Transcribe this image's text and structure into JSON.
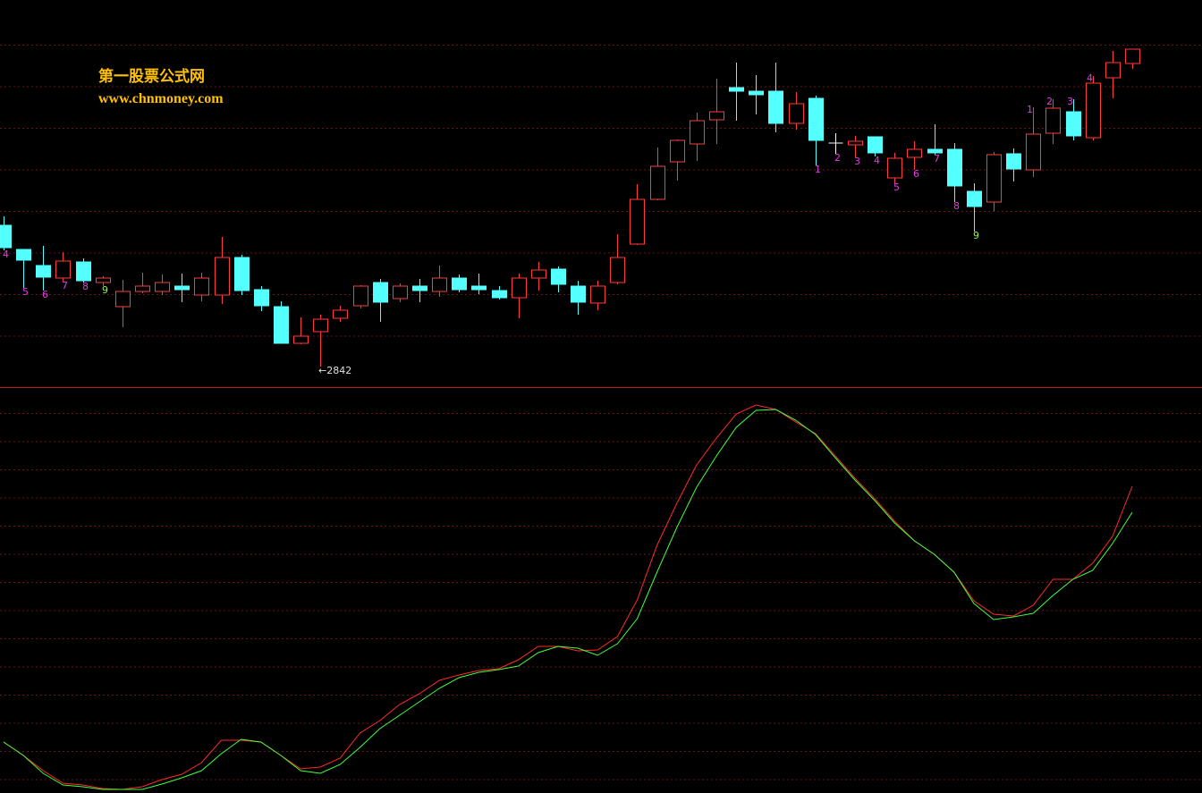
{
  "chart_data": [
    {
      "type": "candlestick",
      "title": "第一股票公式网",
      "subtitle": "www.chnmoney.com",
      "annotation": "←2842",
      "open": [
        3000,
        2973,
        2955,
        2941,
        2959,
        2936,
        2909,
        2926,
        2926,
        2932,
        2922,
        2922,
        2964,
        2928,
        2909,
        2868,
        2881,
        2896,
        2910,
        2936,
        2918,
        2932,
        2926,
        2941,
        2932,
        2927,
        2919,
        2941,
        2951,
        2932,
        2913,
        2936,
        2979,
        3029,
        3071,
        3091,
        3118,
        3154,
        3150,
        3150,
        3114,
        3142,
        3092,
        3090,
        3099,
        3053,
        3076,
        3085,
        3085,
        3038,
        3026,
        3080,
        3062,
        3103,
        3127,
        3098,
        3165,
        3181
      ],
      "high": [
        3010,
        2973,
        2977,
        2970,
        2963,
        2943,
        2939,
        2947,
        2945,
        2946,
        2947,
        2987,
        2967,
        2932,
        2915,
        2897,
        2900,
        2910,
        2933,
        2940,
        2935,
        2940,
        2955,
        2945,
        2946,
        2932,
        2946,
        2959,
        2954,
        2938,
        2938,
        2990,
        3046,
        3087,
        3096,
        3126,
        3164,
        3182,
        3168,
        3182,
        3149,
        3145,
        3103,
        3100,
        3099,
        3081,
        3094,
        3113,
        3092,
        3047,
        3082,
        3086,
        3132,
        3141,
        3141,
        3167,
        3195,
        3197
      ],
      "low": [
        2972,
        2930,
        2927,
        2937,
        2936,
        2932,
        2886,
        2924,
        2922,
        2914,
        2915,
        2912,
        2922,
        2904,
        2868,
        2867,
        2842,
        2892,
        2907,
        2892,
        2914,
        2914,
        2920,
        2925,
        2923,
        2917,
        2896,
        2927,
        2925,
        2900,
        2905,
        2934,
        2978,
        3028,
        3050,
        3072,
        3091,
        3117,
        3124,
        3104,
        3107,
        3067,
        3080,
        3076,
        3077,
        3047,
        3062,
        3079,
        3026,
        2993,
        3016,
        3049,
        3054,
        3091,
        3095,
        3095,
        3142,
        3175
      ],
      "close": [
        2975,
        2961,
        2942,
        2960,
        2938,
        2941,
        2926,
        2932,
        2936,
        2928,
        2941,
        2964,
        2927,
        2910,
        2868,
        2876,
        2895,
        2905,
        2932,
        2914,
        2932,
        2927,
        2941,
        2928,
        2928,
        2919,
        2941,
        2950,
        2934,
        2914,
        2932,
        2964,
        3029,
        3066,
        3095,
        3117,
        3127,
        3150,
        3146,
        3114,
        3136,
        3095,
        3092,
        3094,
        3081,
        3075,
        3085,
        3081,
        3044,
        3021,
        3079,
        3063,
        3102,
        3131,
        3100,
        3159,
        3182,
        3197
      ],
      "up_color": "#ff3c3c",
      "down_color": "#54ffff",
      "doji_color": "#ffffff",
      "ylim": [
        2817,
        3202
      ],
      "count_labels": [
        "4",
        "5",
        "6",
        "7",
        "8",
        "9",
        null,
        null,
        null,
        null,
        null,
        null,
        null,
        null,
        null,
        null,
        null,
        null,
        null,
        null,
        null,
        null,
        null,
        null,
        null,
        null,
        null,
        null,
        null,
        null,
        null,
        null,
        null,
        null,
        null,
        null,
        null,
        null,
        null,
        null,
        null,
        "1",
        "2",
        "3",
        "4",
        "5",
        "6",
        "7",
        "8",
        "9",
        null,
        null,
        "1",
        "2",
        "3",
        "4",
        null,
        null
      ],
      "count_colors": [
        "#e03ce0",
        "#e03ce0",
        "#e03ce0",
        "#e03ce0",
        "#e03ce0",
        "#80ff40",
        null,
        null,
        null,
        null,
        null,
        null,
        null,
        null,
        null,
        null,
        null,
        null,
        null,
        null,
        null,
        null,
        null,
        null,
        null,
        null,
        null,
        null,
        null,
        null,
        null,
        null,
        null,
        null,
        null,
        null,
        null,
        null,
        null,
        null,
        null,
        "#e03ce0",
        "#e03ce0",
        "#e03ce0",
        "#e03ce0",
        "#e03ce0",
        "#e03ce0",
        "#e03ce0",
        "#e03ce0",
        "#80ff40",
        null,
        null,
        "#e03ce0",
        "#e03ce0",
        "#e03ce0",
        "#e03ce0",
        null,
        null
      ]
    },
    {
      "type": "line",
      "ylim": [
        0,
        445
      ],
      "series": [
        {
          "color": "#ff2a2a",
          "values": [
            55,
            40,
            23,
            9,
            7,
            3,
            2,
            5,
            13,
            19,
            32,
            57,
            57,
            55,
            40,
            25,
            27,
            37,
            65,
            79,
            97,
            109,
            124,
            130,
            135,
            137,
            147,
            162,
            162,
            157,
            158,
            173,
            214,
            275,
            322,
            365,
            395,
            422,
            432,
            427,
            413,
            400,
            375,
            350,
            327,
            302,
            280,
            265,
            245,
            213,
            198,
            196,
            208,
            237,
            237,
            255,
            285,
            341
          ]
        },
        {
          "color": "#40ff40",
          "values": [
            55,
            40,
            20,
            7,
            5,
            2,
            2,
            2,
            8,
            15,
            23,
            42,
            58,
            55,
            40,
            23,
            20,
            30,
            49,
            70,
            85,
            100,
            115,
            127,
            133,
            136,
            140,
            155,
            162,
            160,
            152,
            165,
            193,
            245,
            295,
            340,
            375,
            407,
            426,
            427,
            415,
            399,
            373,
            348,
            325,
            300,
            280,
            265,
            245,
            210,
            192,
            195,
            199,
            219,
            237,
            247,
            277,
            312
          ]
        }
      ]
    }
  ]
}
